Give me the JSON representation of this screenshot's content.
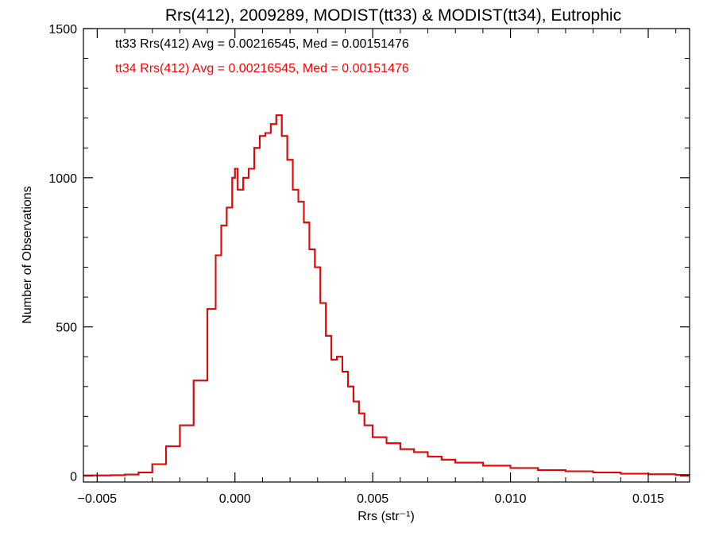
{
  "chart_data": {
    "type": "line",
    "title": "Rrs(412), 2009289, MODIST(tt33) & MODIST(tt34), Eutrophic",
    "xlabel": "Rrs (str⁻¹)",
    "ylabel": "Number of Observations",
    "xlim": [
      -0.0055,
      0.0165
    ],
    "ylim": [
      -20,
      1500
    ],
    "x_ticks": [
      -0.005,
      0.0,
      0.005,
      0.01,
      0.015
    ],
    "x_tick_labels": [
      "−0.005",
      "0.000",
      "0.005",
      "0.010",
      "0.015"
    ],
    "y_ticks": [
      0,
      500,
      1000,
      1500
    ],
    "y_tick_labels": [
      "0",
      "500",
      "1000",
      "1500"
    ],
    "grid": false,
    "legend_position": "top-left",
    "series": [
      {
        "name": "tt33 Rrs(412) Avg = 0.00216545, Med = 0.00151476",
        "color": "#000000",
        "x": [
          -0.0055,
          -0.005,
          -0.0045,
          -0.004,
          -0.0035,
          -0.003,
          -0.0025,
          -0.002,
          -0.0015,
          -0.001,
          -0.0007,
          -0.0005,
          -0.0003,
          -0.0001,
          0.0,
          0.0001,
          0.0003,
          0.0005,
          0.0007,
          0.0009,
          0.0011,
          0.0013,
          0.0015,
          0.0017,
          0.0019,
          0.0021,
          0.0023,
          0.0025,
          0.0027,
          0.0029,
          0.0031,
          0.0033,
          0.0035,
          0.0037,
          0.0039,
          0.0041,
          0.0043,
          0.0045,
          0.0047,
          0.005,
          0.0055,
          0.006,
          0.0065,
          0.007,
          0.0075,
          0.008,
          0.009,
          0.01,
          0.011,
          0.012,
          0.013,
          0.014,
          0.015,
          0.016,
          0.0165
        ],
        "y": [
          2,
          2,
          3,
          5,
          12,
          40,
          100,
          170,
          320,
          560,
          740,
          840,
          900,
          1000,
          1030,
          960,
          1000,
          1030,
          1100,
          1140,
          1150,
          1180,
          1210,
          1140,
          1060,
          960,
          920,
          850,
          760,
          700,
          580,
          470,
          390,
          400,
          350,
          300,
          250,
          210,
          170,
          130,
          110,
          90,
          80,
          65,
          55,
          45,
          35,
          27,
          20,
          16,
          12,
          8,
          6,
          4,
          4
        ]
      },
      {
        "name": "tt34 Rrs(412) Avg = 0.00216545, Med = 0.00151476",
        "color": "#ff0000",
        "x": [
          -0.0055,
          -0.005,
          -0.0045,
          -0.004,
          -0.0035,
          -0.003,
          -0.0025,
          -0.002,
          -0.0015,
          -0.001,
          -0.0007,
          -0.0005,
          -0.0003,
          -0.0001,
          0.0,
          0.0001,
          0.0003,
          0.0005,
          0.0007,
          0.0009,
          0.0011,
          0.0013,
          0.0015,
          0.0017,
          0.0019,
          0.0021,
          0.0023,
          0.0025,
          0.0027,
          0.0029,
          0.0031,
          0.0033,
          0.0035,
          0.0037,
          0.0039,
          0.0041,
          0.0043,
          0.0045,
          0.0047,
          0.005,
          0.0055,
          0.006,
          0.0065,
          0.007,
          0.0075,
          0.008,
          0.009,
          0.01,
          0.011,
          0.012,
          0.013,
          0.014,
          0.015,
          0.016,
          0.0165
        ],
        "y": [
          2,
          2,
          3,
          5,
          12,
          40,
          100,
          170,
          320,
          560,
          740,
          840,
          900,
          1000,
          1030,
          960,
          1000,
          1030,
          1100,
          1140,
          1150,
          1180,
          1210,
          1140,
          1060,
          960,
          920,
          850,
          760,
          700,
          580,
          470,
          390,
          400,
          350,
          300,
          250,
          210,
          170,
          130,
          110,
          90,
          80,
          65,
          55,
          45,
          35,
          27,
          20,
          16,
          12,
          8,
          6,
          4,
          4
        ]
      }
    ]
  }
}
